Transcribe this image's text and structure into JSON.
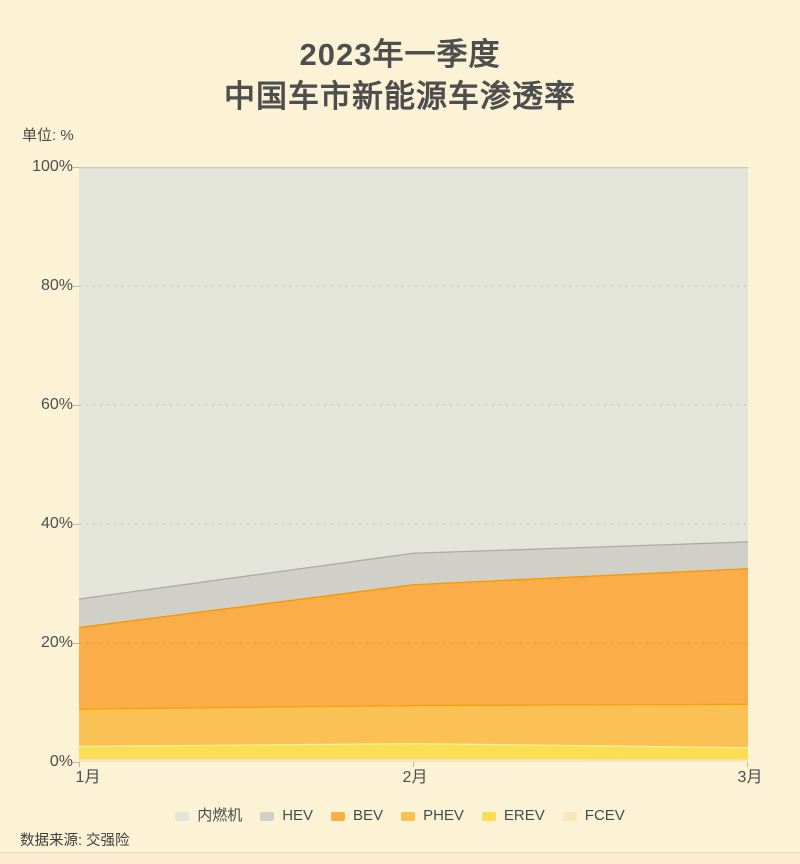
{
  "title": {
    "line1": "2023年一季度",
    "line2": "中国车市新能源车渗透率"
  },
  "unit_label": "单位: %",
  "source_label": "数据来源: 交强险",
  "colors": {
    "background": "#FCF3D7",
    "title_text": "#4E4E4E",
    "axis_text": "#4D4D4D",
    "tick": "#BDB6A2",
    "grid_dash": "rgba(125,115,85,0.30)",
    "divider": "#E5DCC0"
  },
  "chart_data": {
    "type": "area",
    "stacked": true,
    "title": "2023年一季度 中国车市新能源车渗透率",
    "unit": "%",
    "categories": [
      "1月",
      "2月",
      "3月"
    ],
    "x_tick_labels": [
      "1月",
      "2月",
      "3月"
    ],
    "y_tick_labels": [
      "0%",
      "20%",
      "40%",
      "60%",
      "80%",
      "100%"
    ],
    "ylim": [
      0,
      100
    ],
    "grid": "dashed-horizontal",
    "legend_position": "bottom",
    "legend_order": [
      "内燃机",
      "HEV",
      "BEV",
      "PHEV",
      "EREV",
      "FCEV"
    ],
    "series_bottom_to_top": [
      {
        "name": "FCEV",
        "values": [
          0.6,
          0.6,
          0.5
        ],
        "fill": "#F8E7BB",
        "stroke": "#F3DDA4"
      },
      {
        "name": "EREV",
        "values": [
          2.1,
          2.6,
          2.0
        ],
        "fill": "#FBDF52",
        "stroke": "#FDEFA0"
      },
      {
        "name": "PHEV",
        "values": [
          6.3,
          6.4,
          7.3
        ],
        "fill": "#FAC254",
        "stroke": "#F2A403"
      },
      {
        "name": "BEV",
        "values": [
          13.7,
          20.3,
          22.8
        ],
        "fill": "#FAAD49",
        "stroke": "#F59800"
      },
      {
        "name": "HEV",
        "values": [
          4.8,
          5.3,
          4.5
        ],
        "fill": "#D1D0C8",
        "stroke": "#ACABA5"
      },
      {
        "name": "内燃机",
        "values": [
          72.5,
          64.8,
          62.9
        ],
        "fill": "#E3E4DA",
        "stroke": "#C6CABF"
      }
    ]
  }
}
